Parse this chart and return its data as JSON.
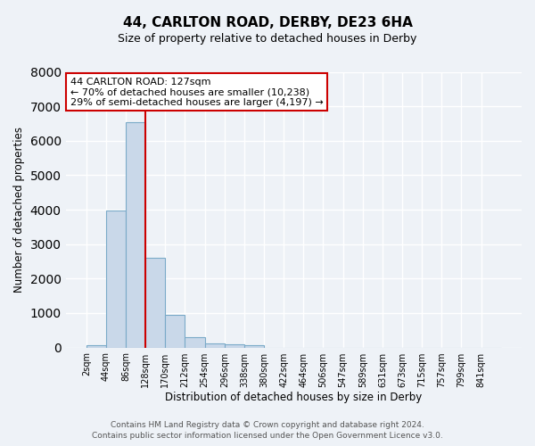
{
  "title": "44, CARLTON ROAD, DERBY, DE23 6HA",
  "subtitle": "Size of property relative to detached houses in Derby",
  "xlabel": "Distribution of detached houses by size in Derby",
  "ylabel": "Number of detached properties",
  "bin_labels": [
    "2sqm",
    "44sqm",
    "86sqm",
    "128sqm",
    "170sqm",
    "212sqm",
    "254sqm",
    "296sqm",
    "338sqm",
    "380sqm",
    "422sqm",
    "464sqm",
    "506sqm",
    "547sqm",
    "589sqm",
    "631sqm",
    "673sqm",
    "715sqm",
    "757sqm",
    "799sqm",
    "841sqm"
  ],
  "bar_values": [
    60,
    3980,
    6530,
    2610,
    950,
    310,
    110,
    90,
    70,
    0,
    0,
    0,
    0,
    0,
    0,
    0,
    0,
    0,
    0,
    0,
    0
  ],
  "bar_color": "#c9d8e9",
  "bar_edge_color": "#7aaac8",
  "property_line_color": "#cc0000",
  "annotation_line1": "44 CARLTON ROAD: 127sqm",
  "annotation_line2": "← 70% of detached houses are smaller (10,238)",
  "annotation_line3": "29% of semi-detached houses are larger (4,197) →",
  "annotation_box_color": "#ffffff",
  "annotation_box_edge_color": "#cc0000",
  "ylim": [
    0,
    8000
  ],
  "yticks": [
    0,
    1000,
    2000,
    3000,
    4000,
    5000,
    6000,
    7000,
    8000
  ],
  "footer_line1": "Contains HM Land Registry data © Crown copyright and database right 2024.",
  "footer_line2": "Contains public sector information licensed under the Open Government Licence v3.0.",
  "bg_color": "#eef2f7",
  "plot_bg_color": "#eef2f7",
  "grid_color": "#ffffff"
}
